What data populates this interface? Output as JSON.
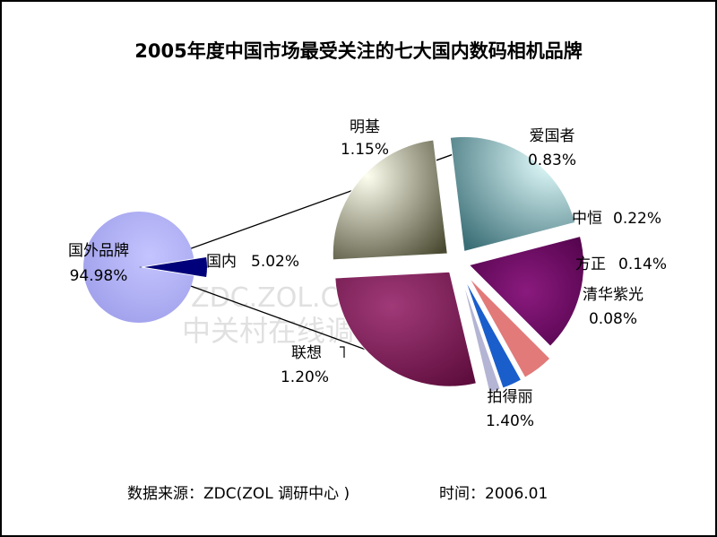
{
  "chart_data": {
    "type": "pie",
    "title": "2005年度中国市场最受关注的七大国内数码相机品牌",
    "main_pie": [
      {
        "name": "国外品牌",
        "value": 94.98,
        "value_label": "94.98%",
        "color": "#a8a8f2"
      },
      {
        "name": "国内",
        "value": 5.02,
        "value_label": "5.02%",
        "color": "#00007a"
      }
    ],
    "detail_pie": [
      {
        "name": "明基",
        "value": 1.15,
        "value_label": "1.15%",
        "color": "#c6e8ea"
      },
      {
        "name": "爱国者",
        "value": 0.83,
        "value_label": "0.83%",
        "color": "#6a0a5e"
      },
      {
        "name": "中恒",
        "value": 0.22,
        "value_label": "0.22%",
        "color": "#e27a7a"
      },
      {
        "name": "方正",
        "value": 0.14,
        "value_label": "0.14%",
        "color": "#1a5ecc"
      },
      {
        "name": "清华紫光",
        "value": 0.08,
        "value_label": "0.08%",
        "color": "#b4b4d4"
      },
      {
        "name": "拍得丽",
        "value": 1.4,
        "value_label": "1.40%",
        "color": "#8a2a64"
      },
      {
        "name": "联想",
        "value": 1.2,
        "value_label": "1.20%",
        "color": "#f0ecc8"
      }
    ],
    "footer_source": "数据来源：ZDC(ZOL 调研中心 )",
    "footer_time": "时间：2006.01",
    "watermark_line1": "ZDC.ZOL.COM.CN",
    "watermark_line2": "中关村在线调研中心"
  }
}
